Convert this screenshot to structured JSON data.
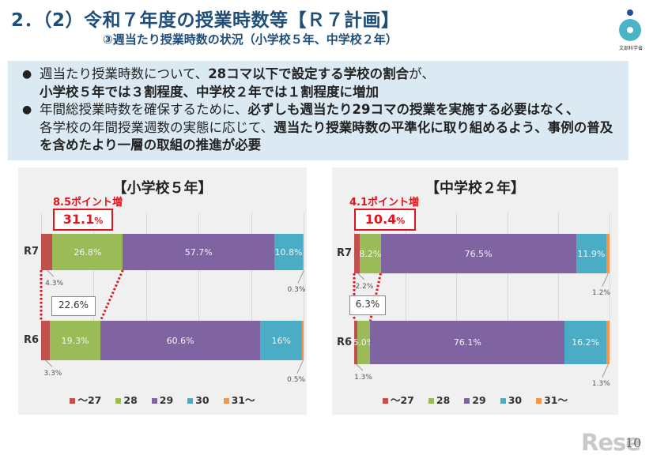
{
  "header": {
    "title": "2．（2）令和７年度の授業時数等【Ｒ７計画】",
    "subtitle": "③週当たり授業時数の状況（小学校５年、中学校２年）",
    "logo_label": "文部科学省"
  },
  "summary": {
    "bullet1": {
      "t1": "週当たり授業時数について、",
      "b1": "28コマ以下で設定する学校の割合",
      "t2": "が、",
      "b2": "小学校５年では３割程度、中学校２年では１割程度に増加"
    },
    "bullet2": {
      "t1": "年間総授業時数を確保するために、",
      "b1": "必ずしも週当たり29コマの授業を実施する必要はなく、",
      "t2": "各学校の年間授業週数の実態に応じて、",
      "b2": "週当たり授業時数の平準化に取り組めるよう、事例の普及を含めたより一層の取組の推進が必要"
    }
  },
  "colors": {
    "le27": "#c0504d",
    "c28": "#9bbb59",
    "c29": "#8064a2",
    "c30": "#4bacc6",
    "ge31": "#f79646",
    "highlight": "#e0141e"
  },
  "chart_data": [
    {
      "type": "bar",
      "orientation": "horizontal-stacked-100",
      "title": "【小学校５年】",
      "categories": [
        "R7",
        "R6"
      ],
      "series": [
        {
          "name": "～27",
          "values": [
            4.3,
            3.3
          ]
        },
        {
          "name": "28",
          "values": [
            26.8,
            19.3
          ]
        },
        {
          "name": "29",
          "values": [
            57.7,
            60.6
          ]
        },
        {
          "name": "30",
          "values": [
            10.8,
            16.0
          ]
        },
        {
          "name": "31～",
          "values": [
            0.3,
            0.5
          ]
        }
      ],
      "labels": {
        "R7": [
          "4.3%",
          "26.8%",
          "57.7%",
          "10.8%",
          "0.3%"
        ],
        "R6": [
          "3.3%",
          "19.3%",
          "60.6%",
          "16%",
          "0.5%"
        ]
      },
      "annotations": {
        "increase_label": "8.5ポイント増",
        "r7_le28_total": "31.1",
        "r7_le28_unit": "%",
        "r6_le28_total": "22.6%"
      },
      "legend": [
        "～27",
        "28",
        "29",
        "30",
        "31～"
      ],
      "legend_position": "bottom",
      "xlim": [
        0,
        100
      ]
    },
    {
      "type": "bar",
      "orientation": "horizontal-stacked-100",
      "title": "【中学校２年】",
      "categories": [
        "R7",
        "R6"
      ],
      "series": [
        {
          "name": "～27",
          "values": [
            2.2,
            1.3
          ]
        },
        {
          "name": "28",
          "values": [
            8.2,
            5.0
          ]
        },
        {
          "name": "29",
          "values": [
            76.5,
            76.1
          ]
        },
        {
          "name": "30",
          "values": [
            11.9,
            16.2
          ]
        },
        {
          "name": "31～",
          "values": [
            1.2,
            1.3
          ]
        }
      ],
      "labels": {
        "R7": [
          "2.2%",
          "8.2%",
          "76.5%",
          "11.9%",
          "1.2%"
        ],
        "R6": [
          "1.3%",
          "5.0%",
          "76.1%",
          "16.2%",
          "1.3%"
        ]
      },
      "annotations": {
        "increase_label": "4.1ポイント増",
        "r7_le28_total": "10.4",
        "r7_le28_unit": "%",
        "r6_le28_total": "6.3%"
      },
      "legend": [
        "～27",
        "28",
        "29",
        "30",
        "31～"
      ],
      "legend_position": "bottom",
      "xlim": [
        0,
        100
      ]
    }
  ],
  "footer": {
    "page_number": "10",
    "watermark": "Rese"
  }
}
